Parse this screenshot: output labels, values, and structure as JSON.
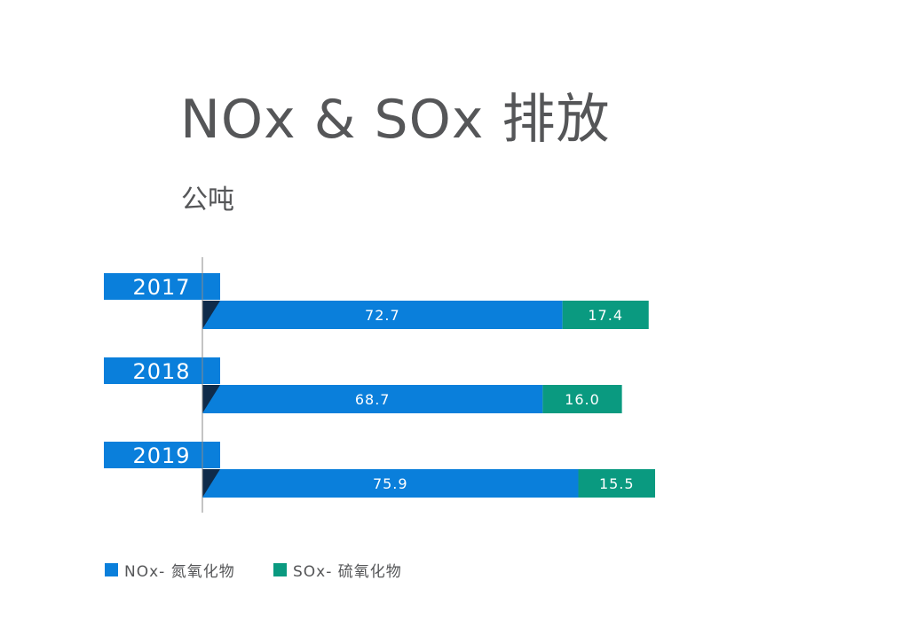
{
  "title": "NOx & SOx 排放",
  "unit": "公吨",
  "colors": {
    "nox": "#0a7fdb",
    "sox": "#0a9a80",
    "axis": "#8a8a8a",
    "shadow": "#0f2b4a"
  },
  "chart_data": {
    "type": "bar",
    "orientation": "horizontal",
    "stacked": true,
    "title": "NOx & SOx 排放",
    "categories": [
      "2017",
      "2018",
      "2019"
    ],
    "series": [
      {
        "name": "NOx- 氮氧化物",
        "values": [
          72.7,
          68.7,
          75.9
        ]
      },
      {
        "name": "SOx- 硫氧化物",
        "values": [
          17.4,
          16.0,
          15.5
        ]
      }
    ],
    "value_labels": [
      [
        "72.7",
        "68.7",
        "75.9"
      ],
      [
        "17.4",
        "16.0",
        "15.5"
      ]
    ],
    "xlim": [
      0,
      91.4
    ],
    "grid": false,
    "legend_position": "bottom-left"
  }
}
